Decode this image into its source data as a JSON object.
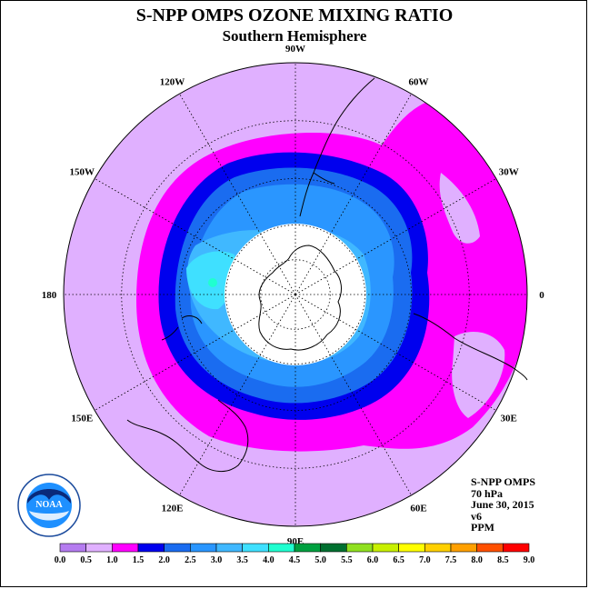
{
  "header": {
    "title": "S-NPP OMPS OZONE MIXING RATIO",
    "subtitle": "Southern Hemisphere"
  },
  "map": {
    "projection": "south-polar-stereographic",
    "longitude_labels": [
      {
        "text": "90W",
        "lon": -90
      },
      {
        "text": "60W",
        "lon": -60
      },
      {
        "text": "30W",
        "lon": -30
      },
      {
        "text": "0",
        "lon": 0
      },
      {
        "text": "30E",
        "lon": 30
      },
      {
        "text": "60E",
        "lon": 60
      },
      {
        "text": "90E",
        "lon": 90
      },
      {
        "text": "120E",
        "lon": 120
      },
      {
        "text": "150E",
        "lon": 150
      },
      {
        "text": "180",
        "lon": 180
      },
      {
        "text": "150W",
        "lon": -150
      },
      {
        "text": "120W",
        "lon": -120
      }
    ]
  },
  "info": {
    "instrument": "S-NPP OMPS",
    "level": "70 hPa",
    "date": "June 30, 2015",
    "version": "v6",
    "units": "PPM"
  },
  "logo": {
    "text": "NOAA",
    "ring_text": "NATIONAL OCEANIC AND ATMOSPHERIC ADMINISTRATION · U.S. DEPARTMENT OF COMMERCE"
  },
  "colorbar": {
    "labels": [
      "0.0",
      "0.5",
      "1.0",
      "1.5",
      "2.0",
      "2.5",
      "3.0",
      "3.5",
      "4.0",
      "4.5",
      "5.0",
      "5.5",
      "6.0",
      "6.5",
      "7.0",
      "7.5",
      "8.0",
      "8.5",
      "9.0"
    ],
    "colors": [
      "#b57cf0",
      "#e0b0ff",
      "#ff00ff",
      "#0000ee",
      "#1a6cf0",
      "#2a96ff",
      "#40b8ff",
      "#3fe0ff",
      "#20ffd0",
      "#00a040",
      "#007030",
      "#90e020",
      "#c8f000",
      "#ffff00",
      "#ffd000",
      "#ffa000",
      "#ff5000",
      "#ff0000",
      "#8b5a2b"
    ]
  }
}
